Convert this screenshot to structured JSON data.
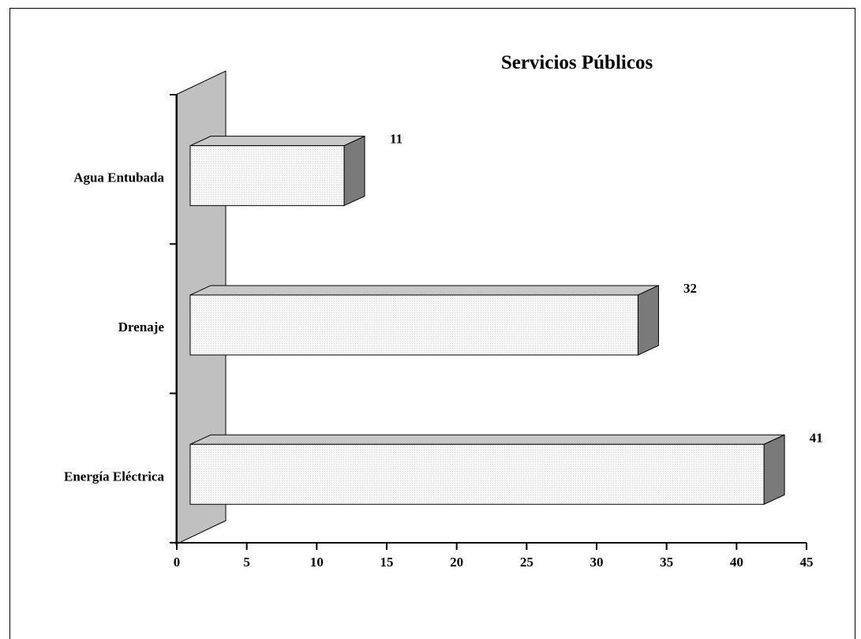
{
  "chart_data": {
    "type": "bar",
    "orientation": "horizontal",
    "style": "3d",
    "title": "Servicios Públicos",
    "categories": [
      "Energía Eléctrica",
      "Drenaje",
      "Agua Entubada"
    ],
    "values": [
      41,
      32,
      11
    ],
    "xlim": [
      0,
      45
    ],
    "xticks": [
      "0",
      "5",
      "10",
      "15",
      "20",
      "25",
      "30",
      "35",
      "40",
      "45"
    ],
    "xlabel": "",
    "ylabel": "",
    "grid": false,
    "legend": "none",
    "colors": {
      "bar_front": "#f4f4f4",
      "bar_top": "#c8c8c8",
      "bar_side": "#7a7a7a",
      "wall": "#c0c0c0"
    }
  }
}
